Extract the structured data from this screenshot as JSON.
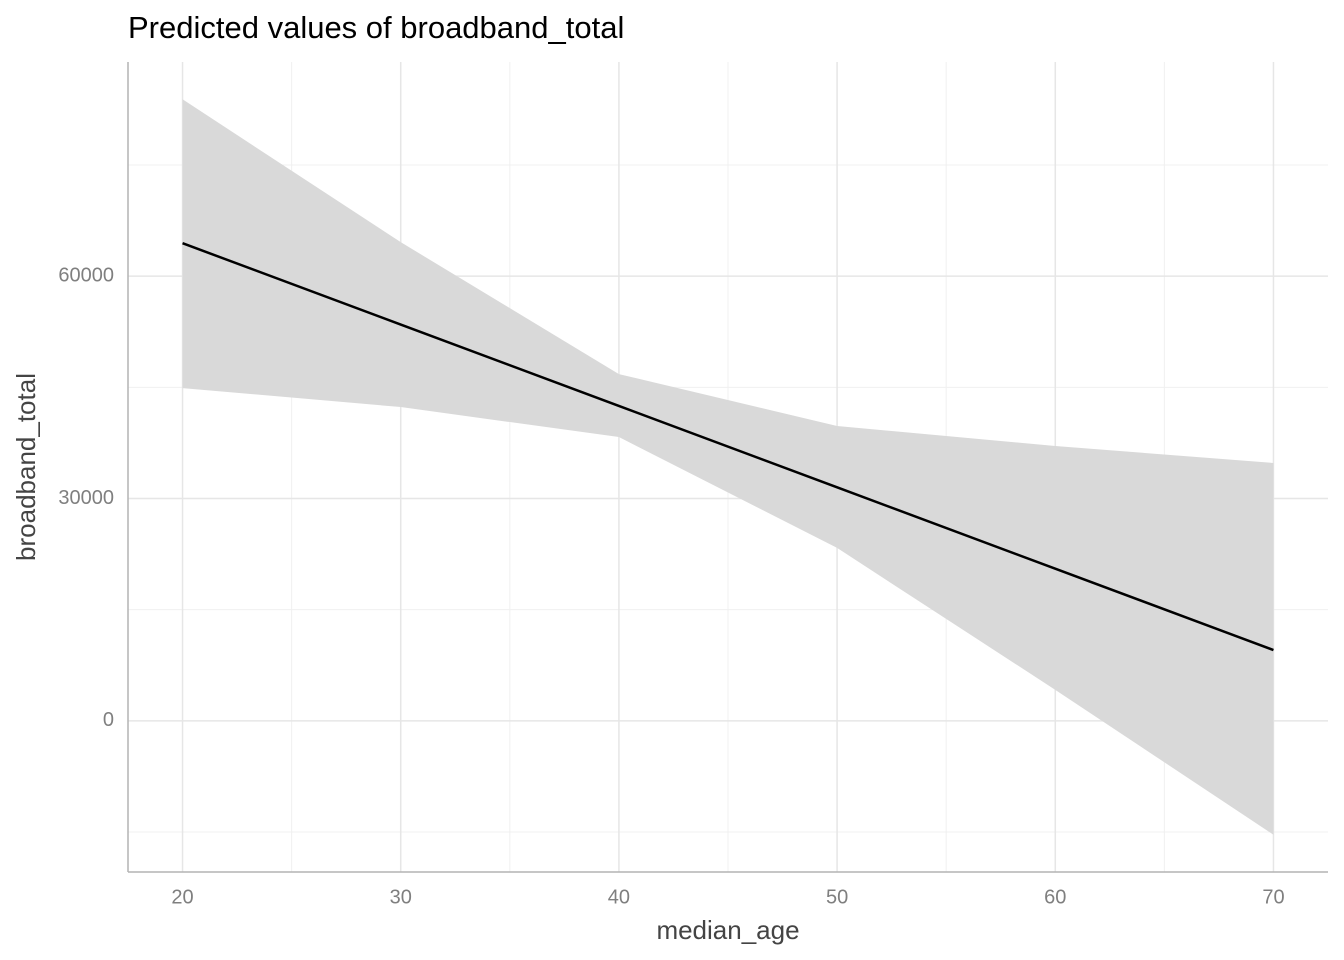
{
  "chart_data": {
    "type": "line",
    "title": "Predicted values of broadband_total",
    "xlabel": "median_age",
    "ylabel": "broadband_total",
    "x": [
      20,
      30,
      40,
      50,
      60,
      70
    ],
    "series": [
      {
        "color": "#000000",
        "band_color": "#d9d9d9",
        "values": [
          64450,
          53470,
          42490,
          31510,
          20530,
          9550
        ],
        "lower": [
          44900,
          42340,
          38290,
          23330,
          4180,
          -15370
        ],
        "upper": [
          83870,
          64590,
          46790,
          39780,
          37080,
          34790
        ]
      }
    ],
    "xlim": [
      17.5,
      72.5
    ],
    "xticks": [
      20,
      30,
      40,
      50,
      60,
      70
    ],
    "xminor": [
      25,
      35,
      45,
      55,
      65
    ],
    "ylim": [
      -20400,
      88900
    ],
    "yticks": [
      0,
      30000,
      60000
    ],
    "yminor": [
      -15000,
      15000,
      45000,
      75000
    ],
    "grid": true
  }
}
